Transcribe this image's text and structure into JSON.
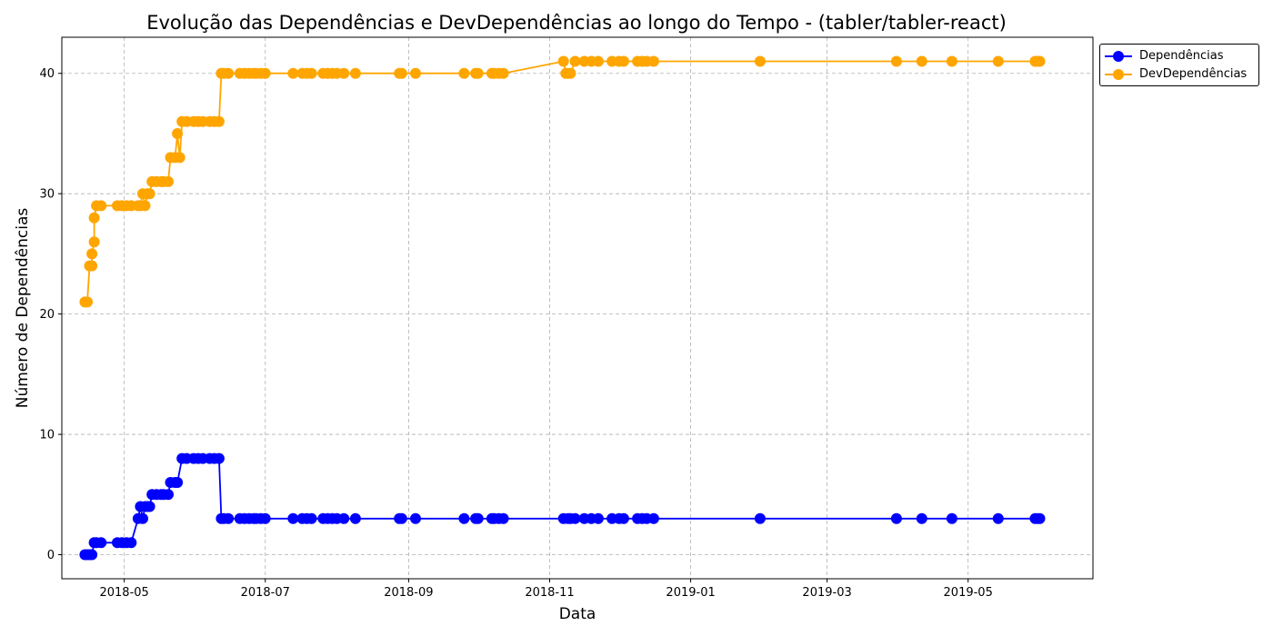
{
  "chart_data": {
    "type": "line",
    "title": "Evolução das Dependências e DevDependências ao longo do Tempo - (tabler/tabler-react)",
    "xlabel": "Data",
    "ylabel": "Número de Dependências",
    "xlim": [
      "2018-04-04",
      "2019-06-24"
    ],
    "ylim": [
      -2,
      43
    ],
    "x_ticks": [
      "2018-05",
      "2018-07",
      "2018-09",
      "2018-11",
      "2019-01",
      "2019-03",
      "2019-05"
    ],
    "y_ticks": [
      0,
      10,
      20,
      30,
      40
    ],
    "grid": true,
    "legend_position": "upper-right-outside",
    "series": [
      {
        "name": "Dependências",
        "color": "#0000ff",
        "points": [
          [
            "2018-04-14",
            0
          ],
          [
            "2018-04-15",
            0
          ],
          [
            "2018-04-16",
            0
          ],
          [
            "2018-04-17",
            0
          ],
          [
            "2018-04-18",
            1
          ],
          [
            "2018-04-19",
            1
          ],
          [
            "2018-04-21",
            1
          ],
          [
            "2018-04-28",
            1
          ],
          [
            "2018-04-30",
            1
          ],
          [
            "2018-05-02",
            1
          ],
          [
            "2018-05-04",
            1
          ],
          [
            "2018-05-07",
            3
          ],
          [
            "2018-05-08",
            4
          ],
          [
            "2018-05-09",
            3
          ],
          [
            "2018-05-10",
            4
          ],
          [
            "2018-05-11",
            4
          ],
          [
            "2018-05-12",
            4
          ],
          [
            "2018-05-13",
            5
          ],
          [
            "2018-05-15",
            5
          ],
          [
            "2018-05-17",
            5
          ],
          [
            "2018-05-18",
            5
          ],
          [
            "2018-05-20",
            5
          ],
          [
            "2018-05-21",
            6
          ],
          [
            "2018-05-23",
            6
          ],
          [
            "2018-05-24",
            6
          ],
          [
            "2018-05-26",
            8
          ],
          [
            "2018-05-28",
            8
          ],
          [
            "2018-05-31",
            8
          ],
          [
            "2018-06-02",
            8
          ],
          [
            "2018-06-04",
            8
          ],
          [
            "2018-06-07",
            8
          ],
          [
            "2018-06-09",
            8
          ],
          [
            "2018-06-11",
            8
          ],
          [
            "2018-06-12",
            3
          ],
          [
            "2018-06-13",
            3
          ],
          [
            "2018-06-15",
            3
          ],
          [
            "2018-06-20",
            3
          ],
          [
            "2018-06-22",
            3
          ],
          [
            "2018-06-24",
            3
          ],
          [
            "2018-06-26",
            3
          ],
          [
            "2018-06-27",
            3
          ],
          [
            "2018-06-29",
            3
          ],
          [
            "2018-07-01",
            3
          ],
          [
            "2018-07-13",
            3
          ],
          [
            "2018-07-17",
            3
          ],
          [
            "2018-07-19",
            3
          ],
          [
            "2018-07-21",
            3
          ],
          [
            "2018-07-26",
            3
          ],
          [
            "2018-07-28",
            3
          ],
          [
            "2018-07-30",
            3
          ],
          [
            "2018-08-01",
            3
          ],
          [
            "2018-08-04",
            3
          ],
          [
            "2018-08-09",
            3
          ],
          [
            "2018-08-28",
            3
          ],
          [
            "2018-08-29",
            3
          ],
          [
            "2018-09-04",
            3
          ],
          [
            "2018-09-25",
            3
          ],
          [
            "2018-09-30",
            3
          ],
          [
            "2018-10-01",
            3
          ],
          [
            "2018-10-07",
            3
          ],
          [
            "2018-10-08",
            3
          ],
          [
            "2018-10-10",
            3
          ],
          [
            "2018-10-12",
            3
          ],
          [
            "2018-11-07",
            3
          ],
          [
            "2018-11-09",
            3
          ],
          [
            "2018-11-10",
            3
          ],
          [
            "2018-11-12",
            3
          ],
          [
            "2018-11-16",
            3
          ],
          [
            "2018-11-19",
            3
          ],
          [
            "2018-11-22",
            3
          ],
          [
            "2018-11-28",
            3
          ],
          [
            "2018-12-01",
            3
          ],
          [
            "2018-12-03",
            3
          ],
          [
            "2018-12-09",
            3
          ],
          [
            "2018-12-11",
            3
          ],
          [
            "2018-12-13",
            3
          ],
          [
            "2018-12-16",
            3
          ],
          [
            "2019-01-31",
            3
          ],
          [
            "2019-03-31",
            3
          ],
          [
            "2019-04-11",
            3
          ],
          [
            "2019-04-24",
            3
          ],
          [
            "2019-05-14",
            3
          ],
          [
            "2019-05-30",
            3
          ],
          [
            "2019-05-31",
            3
          ],
          [
            "2019-06-01",
            3
          ]
        ]
      },
      {
        "name": "DevDependências",
        "color": "#ffa500",
        "points": [
          [
            "2018-04-14",
            21
          ],
          [
            "2018-04-15",
            21
          ],
          [
            "2018-04-16",
            24
          ],
          [
            "2018-04-17",
            24
          ],
          [
            "2018-04-17",
            25
          ],
          [
            "2018-04-18",
            26
          ],
          [
            "2018-04-18",
            28
          ],
          [
            "2018-04-19",
            29
          ],
          [
            "2018-04-21",
            29
          ],
          [
            "2018-04-28",
            29
          ],
          [
            "2018-04-30",
            29
          ],
          [
            "2018-05-02",
            29
          ],
          [
            "2018-05-04",
            29
          ],
          [
            "2018-05-07",
            29
          ],
          [
            "2018-05-08",
            29
          ],
          [
            "2018-05-09",
            30
          ],
          [
            "2018-05-10",
            29
          ],
          [
            "2018-05-11",
            30
          ],
          [
            "2018-05-12",
            30
          ],
          [
            "2018-05-13",
            31
          ],
          [
            "2018-05-15",
            31
          ],
          [
            "2018-05-17",
            31
          ],
          [
            "2018-05-18",
            31
          ],
          [
            "2018-05-20",
            31
          ],
          [
            "2018-05-21",
            33
          ],
          [
            "2018-05-23",
            33
          ],
          [
            "2018-05-24",
            35
          ],
          [
            "2018-05-25",
            33
          ],
          [
            "2018-05-26",
            36
          ],
          [
            "2018-05-28",
            36
          ],
          [
            "2018-05-31",
            36
          ],
          [
            "2018-06-02",
            36
          ],
          [
            "2018-06-04",
            36
          ],
          [
            "2018-06-07",
            36
          ],
          [
            "2018-06-09",
            36
          ],
          [
            "2018-06-11",
            36
          ],
          [
            "2018-06-12",
            40
          ],
          [
            "2018-06-13",
            40
          ],
          [
            "2018-06-15",
            40
          ],
          [
            "2018-06-20",
            40
          ],
          [
            "2018-06-22",
            40
          ],
          [
            "2018-06-24",
            40
          ],
          [
            "2018-06-26",
            40
          ],
          [
            "2018-06-27",
            40
          ],
          [
            "2018-06-29",
            40
          ],
          [
            "2018-07-01",
            40
          ],
          [
            "2018-07-13",
            40
          ],
          [
            "2018-07-17",
            40
          ],
          [
            "2018-07-19",
            40
          ],
          [
            "2018-07-21",
            40
          ],
          [
            "2018-07-26",
            40
          ],
          [
            "2018-07-28",
            40
          ],
          [
            "2018-07-30",
            40
          ],
          [
            "2018-08-01",
            40
          ],
          [
            "2018-08-04",
            40
          ],
          [
            "2018-08-09",
            40
          ],
          [
            "2018-08-28",
            40
          ],
          [
            "2018-08-29",
            40
          ],
          [
            "2018-09-04",
            40
          ],
          [
            "2018-09-25",
            40
          ],
          [
            "2018-09-30",
            40
          ],
          [
            "2018-10-01",
            40
          ],
          [
            "2018-10-07",
            40
          ],
          [
            "2018-10-08",
            40
          ],
          [
            "2018-10-10",
            40
          ],
          [
            "2018-10-12",
            40
          ],
          [
            "2018-11-07",
            41
          ],
          [
            "2018-11-08",
            40
          ],
          [
            "2018-11-09",
            40
          ],
          [
            "2018-11-10",
            40
          ],
          [
            "2018-11-12",
            41
          ],
          [
            "2018-11-16",
            41
          ],
          [
            "2018-11-19",
            41
          ],
          [
            "2018-11-22",
            41
          ],
          [
            "2018-11-28",
            41
          ],
          [
            "2018-12-01",
            41
          ],
          [
            "2018-12-03",
            41
          ],
          [
            "2018-12-09",
            41
          ],
          [
            "2018-12-11",
            41
          ],
          [
            "2018-12-13",
            41
          ],
          [
            "2018-12-16",
            41
          ],
          [
            "2019-01-31",
            41
          ],
          [
            "2019-03-31",
            41
          ],
          [
            "2019-04-11",
            41
          ],
          [
            "2019-04-24",
            41
          ],
          [
            "2019-05-14",
            41
          ],
          [
            "2019-05-30",
            41
          ],
          [
            "2019-05-31",
            41
          ],
          [
            "2019-06-01",
            41
          ]
        ]
      }
    ]
  }
}
